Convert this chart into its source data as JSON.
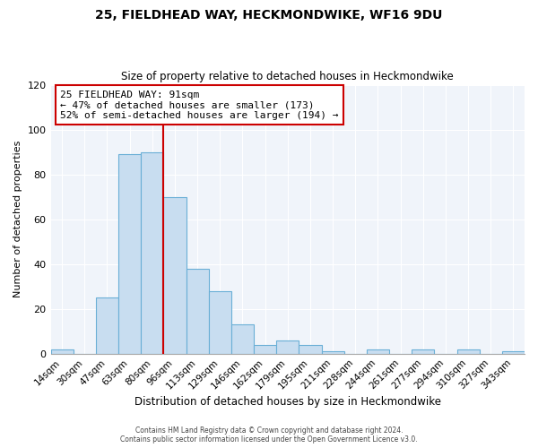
{
  "title": "25, FIELDHEAD WAY, HECKMONDWIKE, WF16 9DU",
  "subtitle": "Size of property relative to detached houses in Heckmondwike",
  "xlabel": "Distribution of detached houses by size in Heckmondwike",
  "ylabel": "Number of detached properties",
  "bin_labels": [
    "14sqm",
    "30sqm",
    "47sqm",
    "63sqm",
    "80sqm",
    "96sqm",
    "113sqm",
    "129sqm",
    "146sqm",
    "162sqm",
    "179sqm",
    "195sqm",
    "211sqm",
    "228sqm",
    "244sqm",
    "261sqm",
    "277sqm",
    "294sqm",
    "310sqm",
    "327sqm",
    "343sqm"
  ],
  "bar_heights": [
    2,
    0,
    25,
    89,
    90,
    70,
    38,
    28,
    13,
    4,
    6,
    4,
    1,
    0,
    2,
    0,
    2,
    0,
    2,
    0,
    1
  ],
  "bar_color": "#c8ddf0",
  "bar_edge_color": "#6aafd6",
  "reference_line_x": 4.5,
  "reference_line_color": "#cc0000",
  "annotation_title": "25 FIELDHEAD WAY: 91sqm",
  "annotation_line1": "← 47% of detached houses are smaller (173)",
  "annotation_line2": "52% of semi-detached houses are larger (194) →",
  "annotation_box_edge_color": "#cc0000",
  "ylim": [
    0,
    120
  ],
  "yticks": [
    0,
    20,
    40,
    60,
    80,
    100,
    120
  ],
  "footnote1": "Contains HM Land Registry data © Crown copyright and database right 2024.",
  "footnote2": "Contains public sector information licensed under the Open Government Licence v3.0."
}
